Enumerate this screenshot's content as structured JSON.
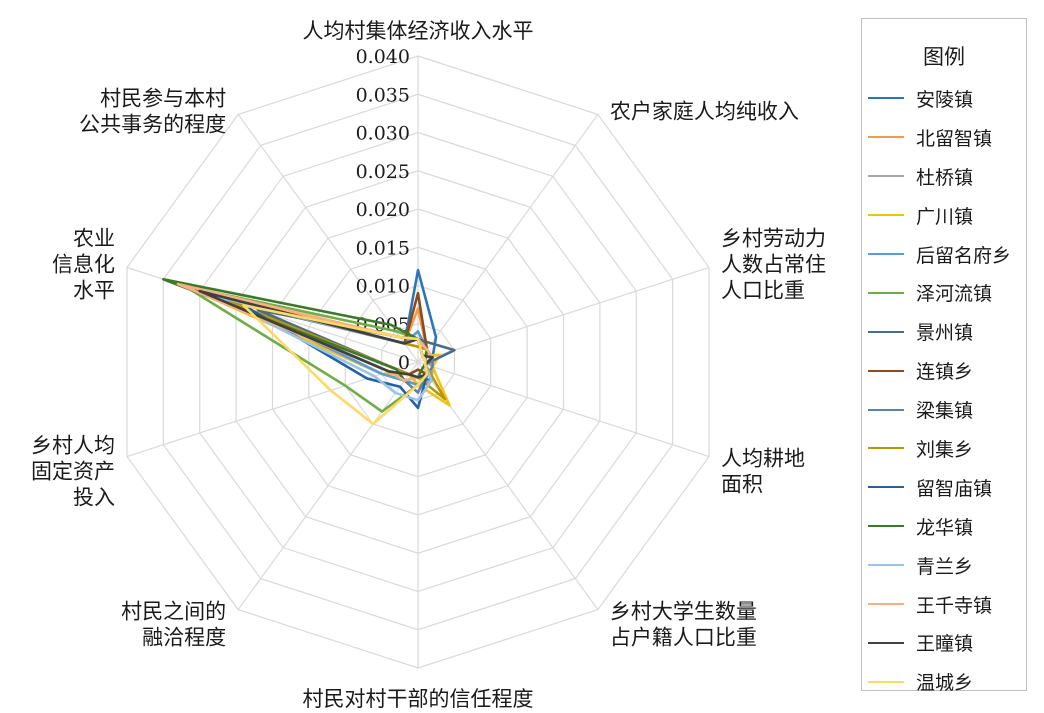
{
  "chart_data": {
    "type": "radar",
    "grid": true,
    "r_range": [
      0,
      0.04
    ],
    "ticks": [
      "0",
      "0.005",
      "0.010",
      "0.015",
      "0.020",
      "0.025",
      "0.030",
      "0.035",
      "0.040"
    ],
    "axes": [
      [
        "人均村集体经济收入水平"
      ],
      [
        "农户家庭人均纯收入"
      ],
      [
        "乡村劳动力",
        "人数占常住",
        "人口比重"
      ],
      [
        "人均耕地",
        "面积"
      ],
      [
        "乡村大学生数量",
        "占户籍人口比重"
      ],
      [
        "村民对村干部的信任程度"
      ],
      [
        "村民之间的",
        "融洽程度"
      ],
      [
        "乡村人均",
        "固定资产",
        "投入"
      ],
      [
        "农业",
        "信息化",
        "水平"
      ],
      [
        "村民参与本村",
        "公共事务的程度"
      ]
    ],
    "legend_title": "图例",
    "legend_position": "right",
    "series": [
      {
        "name": "安陵镇",
        "color": "#2e75b6",
        "values": [
          0.012,
          0.004,
          0.002,
          0.001,
          0.003,
          0.002,
          0.002,
          0.003,
          0.03,
          0.003
        ]
      },
      {
        "name": "北留智镇",
        "color": "#ed9b4e",
        "values": [
          0.007,
          0.002,
          0.001,
          0.001,
          0.002,
          0.001,
          0.002,
          0.003,
          0.031,
          0.003
        ]
      },
      {
        "name": "杜桥镇",
        "color": "#a5a5a5",
        "values": [
          0.004,
          0.002,
          0.001,
          0.002,
          0.003,
          0.003,
          0.003,
          0.003,
          0.029,
          0.003
        ]
      },
      {
        "name": "广川镇",
        "color": "#f2c211",
        "values": [
          0.003,
          0.001,
          0.003,
          0.002,
          0.007,
          0.003,
          0.002,
          0.005,
          0.032,
          0.004
        ]
      },
      {
        "name": "后留名府乡",
        "color": "#5b9bd5",
        "values": [
          0.004,
          0.002,
          0.002,
          0.001,
          0.002,
          0.003,
          0.003,
          0.005,
          0.025,
          0.003
        ]
      },
      {
        "name": "泽河流镇",
        "color": "#70ad47",
        "values": [
          0.003,
          0.001,
          0.001,
          0.001,
          0.002,
          0.003,
          0.008,
          0.01,
          0.032,
          0.005
        ]
      },
      {
        "name": "景州镇",
        "color": "#4a6b8a",
        "values": [
          0.003,
          0.003,
          0.005,
          0.001,
          0.002,
          0.002,
          0.002,
          0.003,
          0.022,
          0.004
        ]
      },
      {
        "name": "连镇乡",
        "color": "#8b4a1f",
        "values": [
          0.009,
          0.002,
          0.001,
          0.001,
          0.002,
          0.001,
          0.002,
          0.003,
          0.031,
          0.003
        ]
      },
      {
        "name": "梁集镇",
        "color": "#5e82a8",
        "values": [
          0.003,
          0.002,
          0.002,
          0.002,
          0.002,
          0.004,
          0.003,
          0.004,
          0.028,
          0.003
        ]
      },
      {
        "name": "刘集乡",
        "color": "#b8960b",
        "values": [
          0.002,
          0.002,
          0.002,
          0.001,
          0.006,
          0.002,
          0.002,
          0.003,
          0.027,
          0.003
        ]
      },
      {
        "name": "留智庙镇",
        "color": "#1f63a3",
        "values": [
          0.003,
          0.001,
          0.001,
          0.001,
          0.002,
          0.006,
          0.004,
          0.007,
          0.024,
          0.004
        ]
      },
      {
        "name": "龙华镇",
        "color": "#3c7a2a",
        "values": [
          0.003,
          0.002,
          0.001,
          0.001,
          0.001,
          0.002,
          0.003,
          0.003,
          0.035,
          0.006
        ]
      },
      {
        "name": "青兰乡",
        "color": "#9dc3e6",
        "values": [
          0.003,
          0.002,
          0.002,
          0.001,
          0.003,
          0.005,
          0.005,
          0.006,
          0.028,
          0.003
        ]
      },
      {
        "name": "王千寺镇",
        "color": "#f4b183",
        "values": [
          0.003,
          0.002,
          0.002,
          0.001,
          0.002,
          0.002,
          0.003,
          0.004,
          0.033,
          0.004
        ]
      },
      {
        "name": "王瞳镇",
        "color": "#404040",
        "values": [
          0.003,
          0.001,
          0.002,
          0.001,
          0.002,
          0.002,
          0.002,
          0.004,
          0.03,
          0.003
        ]
      },
      {
        "name": "温城乡",
        "color": "#ffd966",
        "values": [
          0.003,
          0.001,
          0.001,
          0.001,
          0.002,
          0.003,
          0.01,
          0.012,
          0.024,
          0.004
        ]
      }
    ]
  }
}
